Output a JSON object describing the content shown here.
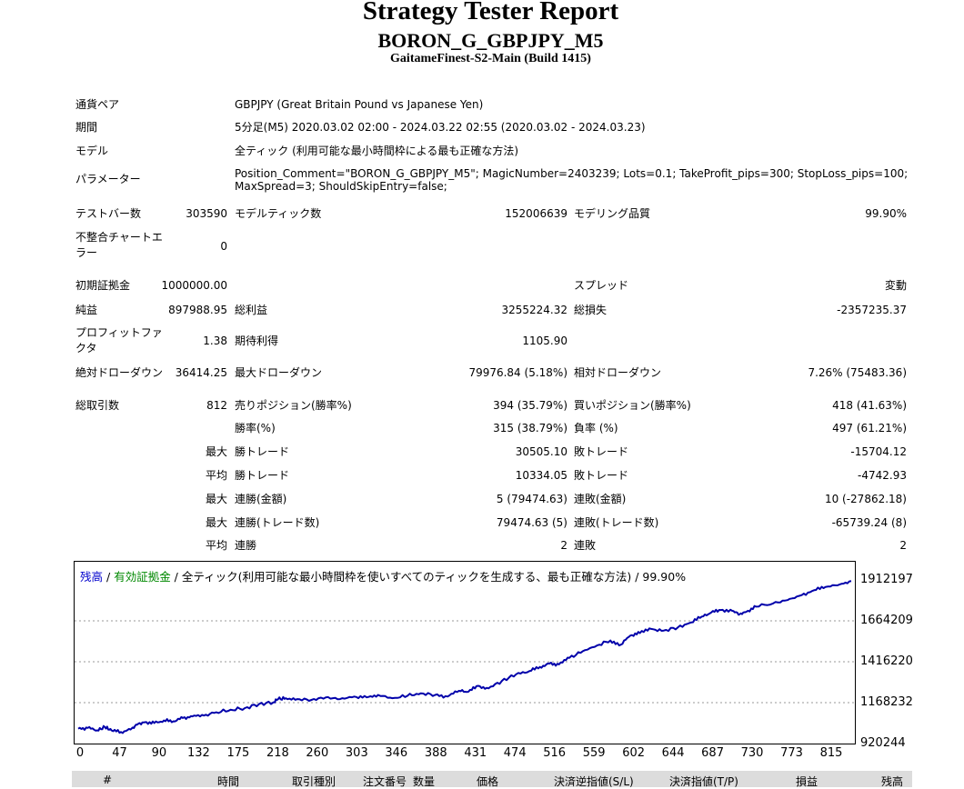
{
  "header": {
    "title": "Strategy Tester Report",
    "subtitle": "BORON_G_GBPJPY_M5",
    "server": "GaitameFinest-S2-Main (Build 1415)"
  },
  "info": {
    "pair_label": "通貨ペア",
    "pair_value": "GBPJPY (Great Britain Pound vs Japanese Yen)",
    "period_label": "期間",
    "period_value": "5分足(M5) 2020.03.02 02:00 - 2024.03.22 02:55 (2020.03.02 - 2024.03.23)",
    "model_label": "モデル",
    "model_value": "全ティック (利用可能な最小時間枠による最も正確な方法)",
    "params_label": "パラメーター",
    "params_line1": "Position_Comment=\"BORON_G_GBPJPY_M5\"; MagicNumber=2403239; Lots=0.1; TakeProfit_pips=300; StopLoss_pips=100;",
    "params_line2": "MaxSpread=3; ShouldSkipEntry=false;"
  },
  "stats": {
    "bars_label": "テストバー数",
    "bars_value": "303590",
    "ticks_label": "モデルティック数",
    "ticks_value": "152006639",
    "quality_label": "モデリング品質",
    "quality_value": "99.90%",
    "mismatch_label": "不整合チャートエラー",
    "mismatch_value": "0",
    "deposit_label": "初期証拠金",
    "deposit_value": "1000000.00",
    "spread_label": "スプレッド",
    "spread_value": "変動",
    "net_label": "純益",
    "net_value": "897988.95",
    "gross_profit_label": "総利益",
    "gross_profit_value": "3255224.32",
    "gross_loss_label": "総損失",
    "gross_loss_value": "-2357235.37",
    "pf_label": "プロフィットファクタ",
    "pf_value": "1.38",
    "expected_label": "期待利得",
    "expected_value": "1105.90",
    "abs_dd_label": "絶対ドローダウン",
    "abs_dd_value": "36414.25",
    "max_dd_label": "最大ドローダウン",
    "max_dd_value": "79976.84 (5.18%)",
    "rel_dd_label": "相対ドローダウン",
    "rel_dd_value": "7.26% (75483.36)",
    "total_trades_label": "総取引数",
    "total_trades_value": "812",
    "short_label": "売りポジション(勝率%)",
    "short_value": "394 (35.79%)",
    "long_label": "買いポジション(勝率%)",
    "long_value": "418 (41.63%)",
    "win_rate_label": "勝率(%)",
    "win_rate_value": "315 (38.79%)",
    "loss_rate_label": "負率 (%)",
    "loss_rate_value": "497 (61.21%)",
    "max_label": "最大",
    "avg_label": "平均",
    "max_win_label": "勝トレード",
    "max_win_value": "30505.10",
    "max_loss_label": "敗トレード",
    "max_loss_value": "-15704.12",
    "avg_win_label": "勝トレード",
    "avg_win_value": "10334.05",
    "avg_loss_label": "敗トレード",
    "avg_loss_value": "-4742.93",
    "max_cons_wins_label": "連勝(金額)",
    "max_cons_wins_value": "5 (79474.63)",
    "max_cons_losses_label": "連敗(金額)",
    "max_cons_losses_value": "10 (-27862.18)",
    "max_cons_profit_label": "連勝(トレード数)",
    "max_cons_profit_value": "79474.63 (5)",
    "max_cons_loss_label": "連敗(トレード数)",
    "max_cons_loss_value": "-65739.24 (8)",
    "avg_cons_wins_label": "連勝",
    "avg_cons_wins_value": "2",
    "avg_cons_losses_label": "連敗",
    "avg_cons_losses_value": "2"
  },
  "legend": {
    "balance": "残高",
    "sep1": " / ",
    "equity": "有効証拠金",
    "sep2": " / ",
    "rest": "全ティック(利用可能な最小時間枠を使いすべてのティックを生成する、最も正確な方法) / 99.90%",
    "balance_color": "#0000cc",
    "equity_color": "#008800"
  },
  "chart_data": {
    "type": "line",
    "title": "",
    "xlabel": "",
    "ylabel": "",
    "xlim": [
      0,
      812
    ],
    "ylim": [
      920244,
      1950000
    ],
    "x_ticks": [
      "0",
      "47",
      "90",
      "132",
      "175",
      "218",
      "260",
      "303",
      "346",
      "388",
      "431",
      "474",
      "516",
      "559",
      "602",
      "644",
      "687",
      "730",
      "773",
      "815"
    ],
    "y_ticks": [
      "1912197",
      "1664209",
      "1416220",
      "1168232",
      "920244"
    ],
    "grid": true,
    "line_color": "#0000aa",
    "series": [
      {
        "x": [
          0,
          10,
          20,
          28,
          35,
          45,
          55,
          62,
          70,
          80,
          90,
          100,
          110,
          120,
          132,
          145,
          160,
          175,
          190,
          205,
          210,
          218,
          230,
          245,
          260,
          275,
          290,
          303,
          315,
          330,
          346,
          360,
          375,
          388,
          400,
          410,
          420,
          431,
          445,
          460,
          474,
          485,
          495,
          505,
          516,
          530,
          545,
          559,
          570,
          580,
          590,
          602,
          615,
          630,
          644,
          655,
          665,
          675,
          687,
          695,
          702,
          712,
          730,
          745,
          760,
          773,
          785,
          800,
          812
        ],
        "y": [
          1010000,
          1015000,
          1000000,
          1020000,
          1000000,
          990000,
          1005000,
          1035000,
          1050000,
          1045000,
          1060000,
          1055000,
          1075000,
          1085000,
          1090000,
          1110000,
          1125000,
          1135000,
          1160000,
          1170000,
          1190000,
          1195000,
          1190000,
          1185000,
          1200000,
          1190000,
          1205000,
          1200000,
          1215000,
          1195000,
          1210000,
          1225000,
          1215000,
          1205000,
          1240000,
          1235000,
          1270000,
          1255000,
          1300000,
          1340000,
          1360000,
          1385000,
          1405000,
          1400000,
          1440000,
          1480000,
          1515000,
          1545000,
          1520000,
          1575000,
          1590000,
          1615000,
          1605000,
          1625000,
          1655000,
          1690000,
          1715000,
          1730000,
          1725000,
          1705000,
          1720000,
          1750000,
          1770000,
          1790000,
          1820000,
          1850000,
          1870000,
          1885000,
          1905000
        ]
      }
    ]
  },
  "trades_header": {
    "hash": "#",
    "time": "時間",
    "type": "取引種別",
    "order": "注文番号",
    "size": "数量",
    "price": "価格",
    "sl": "決済逆指値(S/L)",
    "tp": "決済指値(T/P)",
    "profit": "損益",
    "balance": "残高"
  }
}
